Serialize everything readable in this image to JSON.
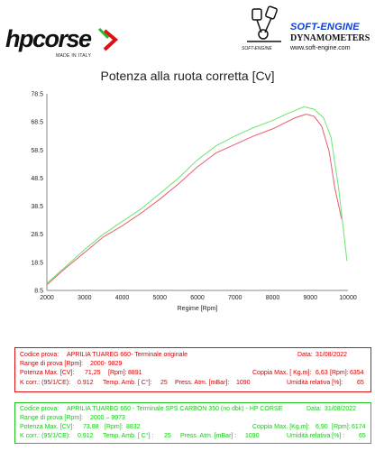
{
  "header": {
    "logo_left": {
      "brand": "hpcorse",
      "made_in": "MADE IN ITALY"
    },
    "logo_right": {
      "brand": "SOFT-ENGINE",
      "subtitle": "DYNAMOMETERS",
      "url": "www.soft-engine.com",
      "tag": "SOFT-ENGINE"
    }
  },
  "colors": {
    "baseline": "#e85b6c",
    "test": "#6fe36f",
    "logo_red": "#e01010",
    "logo_green": "#2db52d",
    "logo_blue": "#0d3fd8"
  },
  "chart_data": {
    "type": "line",
    "title": "Potenza alla ruota corretta [Cv]",
    "xlabel": "Regime [Rpm]",
    "ylabel": "",
    "xlim": [
      2000,
      10000
    ],
    "ylim": [
      8.5,
      78.5
    ],
    "xticks": [
      "2000",
      "3000",
      "4000",
      "5000",
      "6000",
      "7000",
      "8000",
      "9000",
      "10000"
    ],
    "yticks": [
      "78.5",
      "68.5",
      "58.5",
      "48.5",
      "38.5",
      "28.5",
      "18.5",
      "8.5"
    ],
    "grid": false,
    "series": [
      {
        "name": "APRILIA TUAREG 660 - Terminale originale",
        "color": "#e85b6c",
        "x": [
          2000,
          2250,
          2500,
          3000,
          3500,
          4000,
          4500,
          5000,
          5500,
          6000,
          6500,
          7000,
          7500,
          8000,
          8300,
          8600,
          8891,
          9100,
          9300,
          9500,
          9650,
          9829
        ],
        "y": [
          10.5,
          13.5,
          16.5,
          22,
          27.5,
          31.5,
          36,
          41,
          46.5,
          52.5,
          57.5,
          60.5,
          63.5,
          66,
          68,
          70,
          71.25,
          70.5,
          67,
          58,
          45,
          34
        ]
      },
      {
        "name": "APRILIA TUAREG 660 - Terminale SPS CARBON 350 (no dbk) - HP CORSE",
        "color": "#6fe36f",
        "x": [
          2000,
          2250,
          2500,
          3000,
          3500,
          4000,
          4500,
          5000,
          5500,
          6000,
          6500,
          7000,
          7500,
          8000,
          8400,
          8832,
          9100,
          9350,
          9550,
          9750,
          9973
        ],
        "y": [
          11,
          14,
          17,
          23,
          28.5,
          33,
          37.5,
          43,
          48.5,
          55,
          60,
          63.5,
          66.5,
          69,
          71.5,
          73.88,
          73,
          70,
          63,
          45,
          19
        ]
      }
    ]
  },
  "tests": [
    {
      "code_label": "Codice prova:",
      "code": "APRILIA TUAREG 660- Terminale originale",
      "date_label": "Data:",
      "date": "31/08/2022",
      "range_label": "Range di prova [Rpm]:",
      "range": "2000- 9829",
      "power_label": "Potenza Max. [CV]:",
      "power": "71,25",
      "power_rpm_label": "[Rpm]:",
      "power_rpm": "8891",
      "torque_label": "Coppia Max. [ Kg.m]:",
      "torque": "6,63",
      "torque_rpm_label": "[Rpm]:",
      "torque_rpm": "6354",
      "kcorr_label": "K corr.: (95/1/CE):",
      "kcorr": "0.912",
      "temp_label": "Temp. Amb. [ C°]:",
      "temp": "25",
      "press_label": "Press. Atm. [mBar]:",
      "press": "1090",
      "hum_label": "Umidità relativa [%]:",
      "hum": "65"
    },
    {
      "code_label": "Codice prova:",
      "code": "APRILIA TUAREG 660 - Terminale SPS CARBON 350 (no dbk) - HP CORSE",
      "date_label": "Data:",
      "date": "31/08/2022",
      "range_label": "Range di prova [Rpm]:",
      "range": "2000 – 9973",
      "power_label": "Potenza Max. [CV]:",
      "power": "73,88",
      "power_rpm_label": "[Rpm]:",
      "power_rpm": "8832",
      "torque_label": "Coppia Max. [Kg.m]:",
      "torque": "6,90",
      "torque_rpm_label": "[Rpm]:",
      "torque_rpm": "6174",
      "kcorr_label": "K corr.: (95/1/CE):",
      "kcorr": "0.912",
      "temp_label": "Temp. Amb. [ C°] :",
      "temp": "25",
      "press_label": "Press. Atm. [mBar] :",
      "press": "1090",
      "hum_label": "Umidità relativa [%] :",
      "hum": "65"
    }
  ]
}
